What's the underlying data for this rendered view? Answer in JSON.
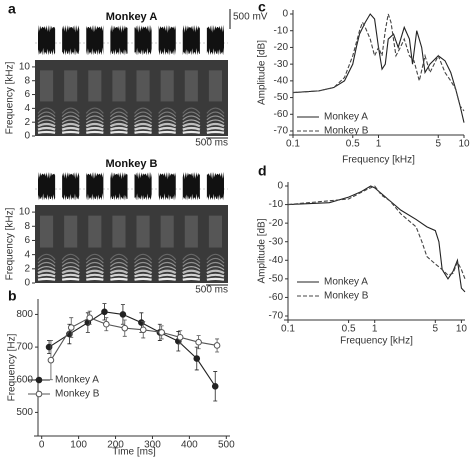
{
  "chart_data": [
    {
      "type": "spectrogram",
      "panel": "a",
      "title": "Monkey A",
      "ylabel": "Frequency [kHz]",
      "ylim": [
        0,
        11
      ],
      "yticks": [
        0,
        2,
        4,
        6,
        8,
        10
      ],
      "amplitude_scale": "500 mV",
      "time_scale": "500 ms"
    },
    {
      "type": "spectrogram",
      "title": "Monkey B",
      "ylabel": "Frequency [kHz]",
      "ylim": [
        0,
        11
      ],
      "yticks": [
        0,
        2,
        4,
        6,
        8,
        10
      ],
      "time_scale": "500 ms"
    },
    {
      "type": "line",
      "panel": "b",
      "xlabel": "Time [ms]",
      "ylabel": "Frequency [Hz]",
      "xlim": [
        -10,
        510
      ],
      "xticks": [
        0,
        100,
        200,
        300,
        400,
        500
      ],
      "ylim": [
        440,
        835
      ],
      "yticks": [
        500,
        600,
        700,
        800
      ],
      "legend": "lower left",
      "series": [
        {
          "name": "Monkey A",
          "color": "#222222",
          "marker": "filled",
          "dash": "solid",
          "x": [
            20,
            75,
            125,
            170,
            220,
            270,
            320,
            370,
            420,
            470
          ],
          "values": [
            700,
            740,
            775,
            808,
            800,
            775,
            745,
            718,
            665,
            580
          ],
          "errors": [
            20,
            30,
            30,
            25,
            30,
            30,
            25,
            30,
            35,
            45
          ]
        },
        {
          "name": "Monkey B",
          "color": "#555555",
          "marker": "open",
          "dash": "solid",
          "x": [
            25,
            80,
            130,
            175,
            225,
            275,
            325,
            375,
            425,
            475
          ],
          "values": [
            660,
            760,
            790,
            770,
            758,
            753,
            745,
            730,
            715,
            705
          ],
          "errors": [
            60,
            30,
            20,
            20,
            25,
            25,
            20,
            20,
            20,
            20
          ]
        }
      ]
    },
    {
      "type": "line",
      "panel": "c",
      "xlabel": "Frequency [kHz]",
      "ylabel": "Amplitude [dB]",
      "log_x": true,
      "xlim": [
        0.1,
        10
      ],
      "xticks": [
        0.1,
        0.5,
        1,
        5,
        10
      ],
      "ylim": [
        -70,
        0
      ],
      "yticks": [
        0,
        -10,
        -20,
        -30,
        -40,
        -50,
        -60,
        -70
      ],
      "legend": "lower left",
      "series": [
        {
          "name": "Monkey A",
          "color": "#222222",
          "dash": "solid",
          "x": [
            0.1,
            0.2,
            0.3,
            0.4,
            0.5,
            0.55,
            0.6,
            0.7,
            0.8,
            0.9,
            1.0,
            1.1,
            1.2,
            1.3,
            1.5,
            1.7,
            2.0,
            2.3,
            2.5,
            2.8,
            3.2,
            3.5,
            4,
            5,
            6,
            7,
            8,
            9,
            10
          ],
          "values": [
            -47,
            -46,
            -44,
            -40,
            -30,
            -20,
            -12,
            -5,
            0,
            -3,
            -20,
            -33,
            -30,
            -15,
            -12,
            -20,
            -8,
            -15,
            -30,
            -10,
            -20,
            -35,
            -30,
            -25,
            -28,
            -35,
            -45,
            -55,
            -65
          ]
        },
        {
          "name": "Monkey B",
          "color": "#444444",
          "dash": "dashed",
          "x": [
            0.1,
            0.2,
            0.3,
            0.4,
            0.5,
            0.6,
            0.65,
            0.7,
            0.8,
            0.9,
            1.0,
            1.1,
            1.2,
            1.3,
            1.4,
            1.6,
            1.8,
            2.0,
            2.3,
            2.6,
            3,
            3.5,
            4,
            5,
            6,
            7,
            8,
            9,
            10
          ],
          "values": [
            -47,
            -46,
            -44,
            -38,
            -25,
            -10,
            -5,
            -8,
            -15,
            -25,
            -20,
            -25,
            -10,
            0,
            -5,
            -25,
            -20,
            -15,
            -25,
            -28,
            -40,
            -25,
            -35,
            -25,
            -35,
            -40,
            -45,
            -55,
            -58
          ]
        }
      ]
    },
    {
      "type": "line",
      "panel": "d",
      "xlabel": "Frequency [kHz]",
      "ylabel": "Amplitude [dB]",
      "log_x": true,
      "xlim": [
        0.1,
        11
      ],
      "xticks": [
        0.1,
        0.5,
        1,
        5,
        10
      ],
      "ylim": [
        -70,
        0
      ],
      "yticks": [
        0,
        -10,
        -20,
        -30,
        -40,
        -50,
        -60,
        -70
      ],
      "legend": "lower left",
      "series": [
        {
          "name": "Monkey A",
          "color": "#222222",
          "dash": "solid",
          "x": [
            0.1,
            0.3,
            0.5,
            0.7,
            0.9,
            1,
            1.5,
            2,
            3,
            4,
            5,
            5.5,
            6,
            7,
            8,
            9,
            10,
            11
          ],
          "values": [
            -10,
            -9,
            -6,
            -3,
            0,
            -1,
            -8,
            -13,
            -18,
            -22,
            -24,
            -30,
            -45,
            -50,
            -46,
            -40,
            -55,
            -57
          ]
        },
        {
          "name": "Monkey B",
          "color": "#444444",
          "dash": "dashed",
          "x": [
            0.1,
            0.5,
            0.8,
            1,
            1.2,
            1.5,
            2,
            3,
            3.5,
            4,
            5,
            6,
            7,
            8,
            9,
            10,
            11
          ],
          "values": [
            -10,
            -7,
            -2,
            0,
            -5,
            -8,
            -15,
            -22,
            -30,
            -38,
            -42,
            -45,
            -48,
            -47,
            -41,
            -45,
            -50
          ]
        }
      ]
    }
  ]
}
